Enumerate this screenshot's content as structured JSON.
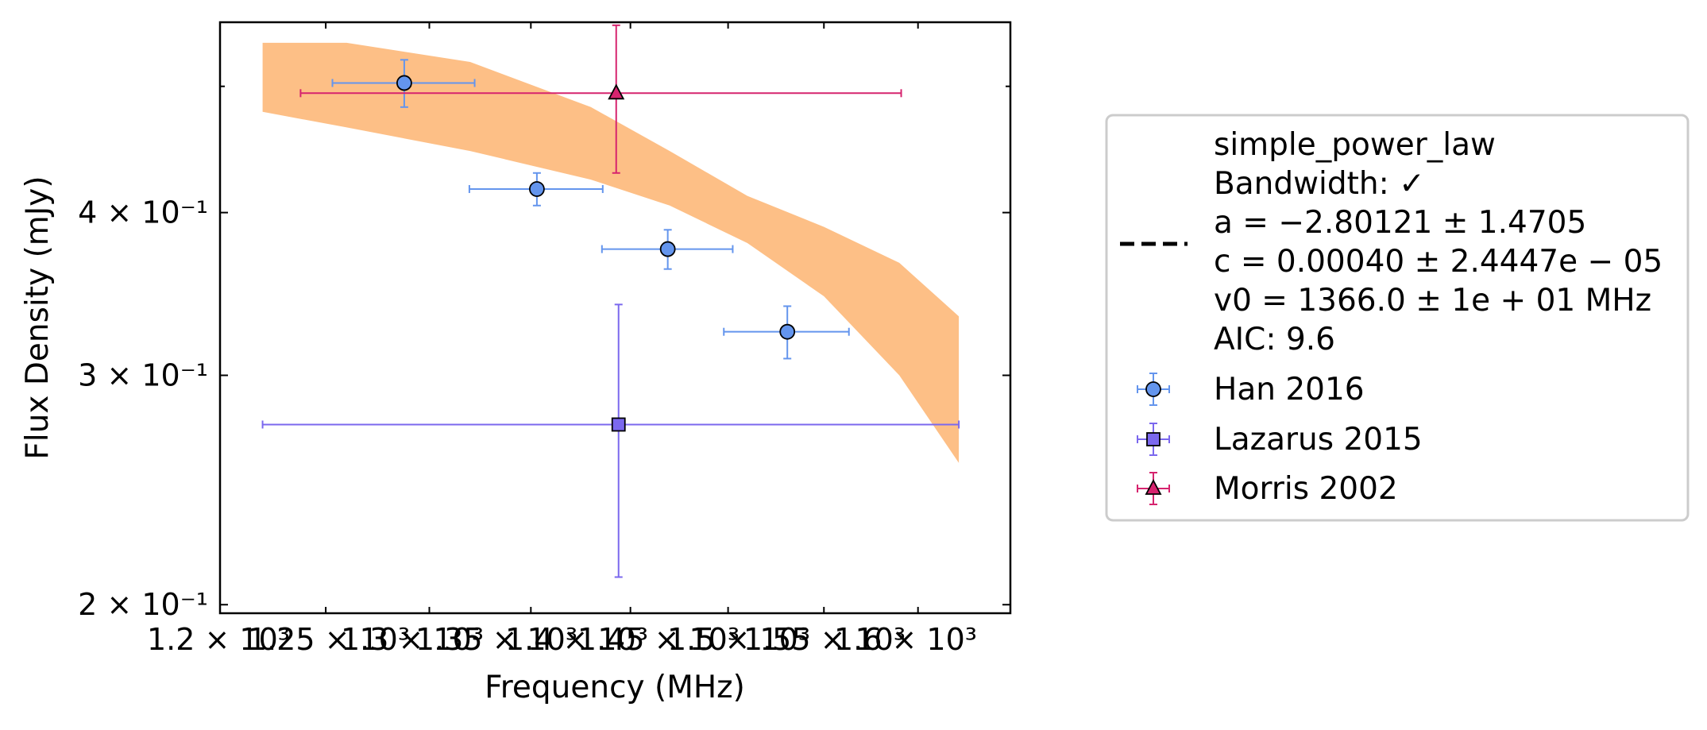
{
  "chart_data": {
    "type": "scatter",
    "xlabel": "Frequency (MHz)",
    "ylabel": "Flux Density (mJy)",
    "xscale": "log",
    "yscale": "log",
    "xlim": [
      1200,
      1400
    ],
    "ylim": [
      0.197,
      0.56
    ],
    "grid": false,
    "legend_position": "right-outside",
    "x_tick_labels": [
      "1.2 × 10³",
      "1.25 × 10³",
      "1.3 × 10³",
      "1.35 × 10³",
      "1.4 × 10³",
      "1.45 × 10³",
      "1.5 × 10³",
      "1.55 × 10³",
      "1.6 × 10³"
    ],
    "y_tick_labels": [
      "2 × 10⁻¹",
      "3 × 10⁻¹",
      "4 × 10⁻¹"
    ],
    "fit": {
      "label_lines": [
        "simple_power_law",
        "Bandwidth: ✓",
        "a = −2.80121 ± 1.4705",
        "c = 0.00040 ± 2.4447e − 05",
        "v0 = 1366.0 ± 1e + 01 MHz",
        "AIC: 9.6"
      ],
      "a": -2.80121,
      "c": 0.0004,
      "v0": 1366.0,
      "color": "#000000",
      "band_color": "#fdbf86",
      "band_x": [
        1210,
        1230,
        1260,
        1290,
        1310,
        1330,
        1350,
        1370,
        1386
      ],
      "band_lower": [
        0.478,
        0.465,
        0.446,
        0.424,
        0.405,
        0.379,
        0.345,
        0.3,
        0.257
      ],
      "band_upper": [
        0.54,
        0.54,
        0.522,
        0.482,
        0.446,
        0.412,
        0.39,
        0.366,
        0.333
      ]
    },
    "series": [
      {
        "name": "Han 2016",
        "marker": "circle",
        "color": "#6495ed",
        "points": [
          {
            "x": 1243.9,
            "y": 0.503,
            "xerr": [
              1226.6,
              1261.1
            ],
            "yerr": [
              0.482,
              0.524
            ]
          },
          {
            "x": 1276.5,
            "y": 0.417,
            "xerr": [
              1259.8,
              1293.0
            ],
            "yerr": [
              0.405,
              0.429
            ]
          },
          {
            "x": 1309.5,
            "y": 0.375,
            "xerr": [
              1292.8,
              1326.2
            ],
            "yerr": [
              0.362,
              0.388
            ]
          },
          {
            "x": 1340.4,
            "y": 0.324,
            "xerr": [
              1323.9,
              1356.6
            ],
            "yerr": [
              0.309,
              0.339
            ]
          }
        ]
      },
      {
        "name": "Lazarus 2015",
        "marker": "square",
        "color": "#7b68ee",
        "points": [
          {
            "x": 1297.0,
            "y": 0.275,
            "xerr": [
              1210.0,
              1386.0
            ],
            "yerr": [
              0.21,
              0.34
            ]
          }
        ]
      },
      {
        "name": "Morris 2002",
        "marker": "triangle",
        "color": "#d6246e",
        "points": [
          {
            "x": 1296.4,
            "y": 0.494,
            "xerr": [
              1219.0,
              1370.5
            ],
            "yerr": [
              0.429,
              0.557
            ]
          }
        ]
      }
    ]
  }
}
